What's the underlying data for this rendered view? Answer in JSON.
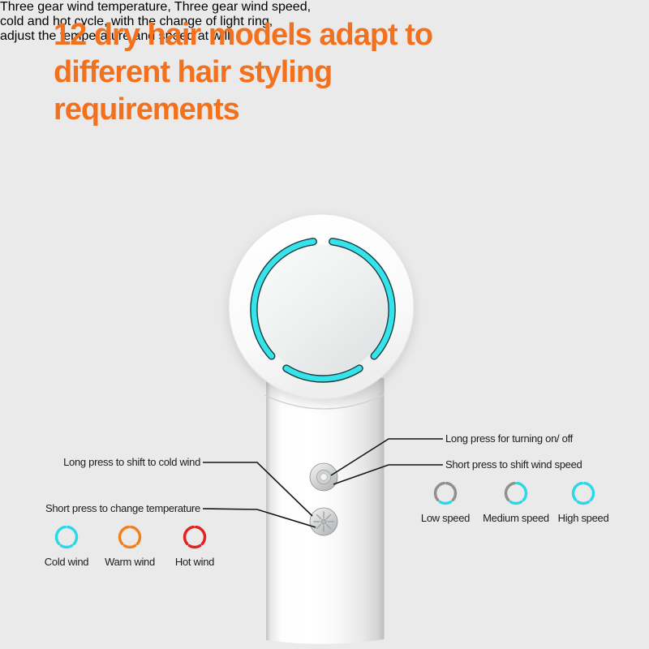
{
  "background": "#eaeaea",
  "header": {
    "title_lines": [
      "12 dry hair models adapt to",
      "different hair styling",
      "requirements"
    ],
    "title_color": "#f3701d",
    "subtitle_lines": [
      "Three gear wind temperature, Three gear wind speed,",
      "cold and hot cycle, with the change of light ring,",
      "adjust the temperature and speed at will."
    ],
    "subtitle_color": "#7b7b7b"
  },
  "device": {
    "light_ring_color": "#35e3ea",
    "light_ring_outline_color": "#1b3b40",
    "power_button_callouts": {
      "long_press": "Long press for turning on/ off",
      "short_press": "Short press to shift wind speed"
    },
    "temperature_button_callouts": {
      "long_press": "Long press to shift to cold wind",
      "short_press": "Short press to change temperature"
    }
  },
  "temperature_modes": {
    "items": [
      {
        "label": "Cold wind",
        "arc_colors": [
          "#2bd8e8",
          "#2bd8e8",
          "#2bd8e8"
        ]
      },
      {
        "label": "Warm wind",
        "arc_colors": [
          "#f0801e",
          "#f0801e",
          "#f0801e"
        ]
      },
      {
        "label": "Hot wind",
        "arc_colors": [
          "#e4211f",
          "#e4211f",
          "#e4211f"
        ]
      }
    ]
  },
  "speed_modes": {
    "items": [
      {
        "label": "Low speed",
        "arc_colors": [
          "#8f8f8f",
          "#2bd8e8",
          "#8f8f8f"
        ]
      },
      {
        "label": "Medium speed",
        "arc_colors": [
          "#2bd8e8",
          "#2bd8e8",
          "#8f8f8f"
        ]
      },
      {
        "label": "High speed",
        "arc_colors": [
          "#2bd8e8",
          "#2bd8e8",
          "#2bd8e8"
        ]
      }
    ]
  }
}
